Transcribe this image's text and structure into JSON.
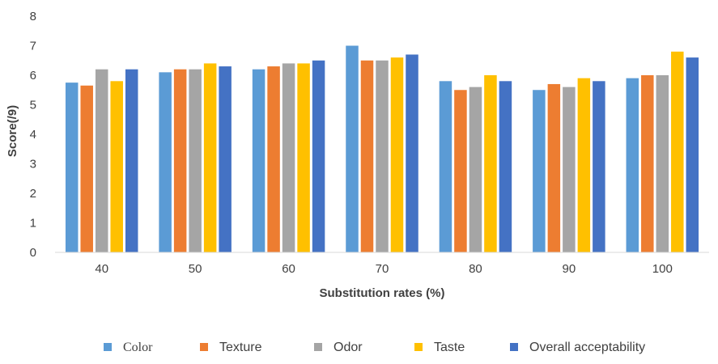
{
  "chart_data": {
    "type": "bar",
    "xlabel": "Substitution rates (%)",
    "ylabel": "Score(/9)",
    "ylim": [
      0,
      8
    ],
    "yticks": [
      "0",
      "1",
      "2",
      "3",
      "4",
      "5",
      "6",
      "7",
      "8"
    ],
    "categories": [
      "40",
      "50",
      "60",
      "70",
      "80",
      "90",
      "100"
    ],
    "grid": false,
    "legend_position": "bottom",
    "series": [
      {
        "name": "Color",
        "color": "#5B9BD5",
        "values": [
          5.75,
          6.1,
          6.2,
          7.0,
          5.8,
          5.5,
          5.9
        ]
      },
      {
        "name": "Texture",
        "color": "#ED7D31",
        "values": [
          5.65,
          6.2,
          6.3,
          6.5,
          5.5,
          5.7,
          6.0
        ]
      },
      {
        "name": "Odor",
        "color": "#A5A5A5",
        "values": [
          6.2,
          6.2,
          6.4,
          6.5,
          5.6,
          5.6,
          6.0
        ]
      },
      {
        "name": "Taste",
        "color": "#FFC000",
        "values": [
          5.8,
          6.4,
          6.4,
          6.6,
          6.0,
          5.9,
          6.8
        ]
      },
      {
        "name": "Overall acceptability",
        "color": "#4472C4",
        "values": [
          6.2,
          6.3,
          6.5,
          6.7,
          5.8,
          5.8,
          6.6
        ]
      }
    ]
  }
}
